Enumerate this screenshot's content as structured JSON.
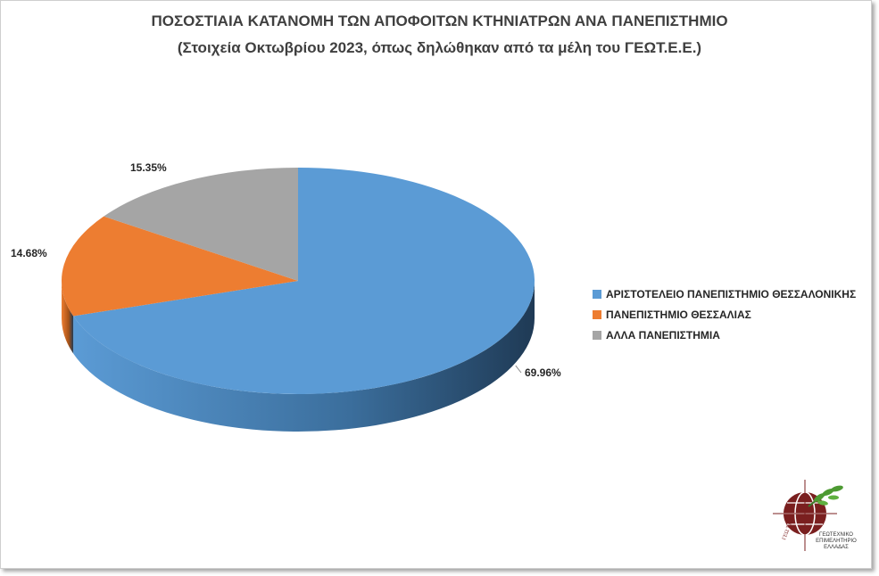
{
  "chart_data": {
    "type": "pie",
    "title": "ΠΟΣΟΣΤΙΑΙΑ ΚΑΤΑΝΟΜΗ ΤΩΝ ΑΠΟΦΟΙΤΩΝ ΚΤΗΝΙΑΤΡΩΝ ΑΝΑ ΠΑΝΕΠΙΣΤΗΜΙΟ",
    "subtitle": "(Στοιχεία Οκτωβρίου 2023, όπως δηλώθηκαν από τα μέλη του ΓΕΩΤ.Ε.Ε.)",
    "style": "3d",
    "legend_position": "right",
    "slices": [
      {
        "label": "ΑΡΙΣΤΟΤΕΛΕΙΟ ΠΑΝΕΠΙΣΤΗΜΙΟ ΘΕΣΣΑΛΟΝΙΚΗΣ",
        "value": 69.96,
        "display": "69.96%",
        "color": "#5b9bd5",
        "side_color": "#3b6e9c"
      },
      {
        "label": "ΠΑΝΕΠΙΣΤΗΜΙΟ ΘΕΣΣΑΛΙΑΣ",
        "value": 14.68,
        "display": "14.68%",
        "color": "#ed7d31",
        "side_color": "#a85318"
      },
      {
        "label": "ΑΛΛΑ ΠΑΝΕΠΙΣΤΗΜΙΑ",
        "value": 15.35,
        "display": "15.35%",
        "color": "#a5a5a5",
        "side_color": "#737373"
      }
    ]
  },
  "logo": {
    "ring_text": "ΓΕΩ.Τ.Ε.Ε.",
    "caption": [
      "ΓΕΩΤΕΧΝΙΚΟ",
      "ΕΠΙΜΕΛΗΤΗΡΙΟ",
      "ΕΛΛΑΔΑΣ"
    ]
  }
}
